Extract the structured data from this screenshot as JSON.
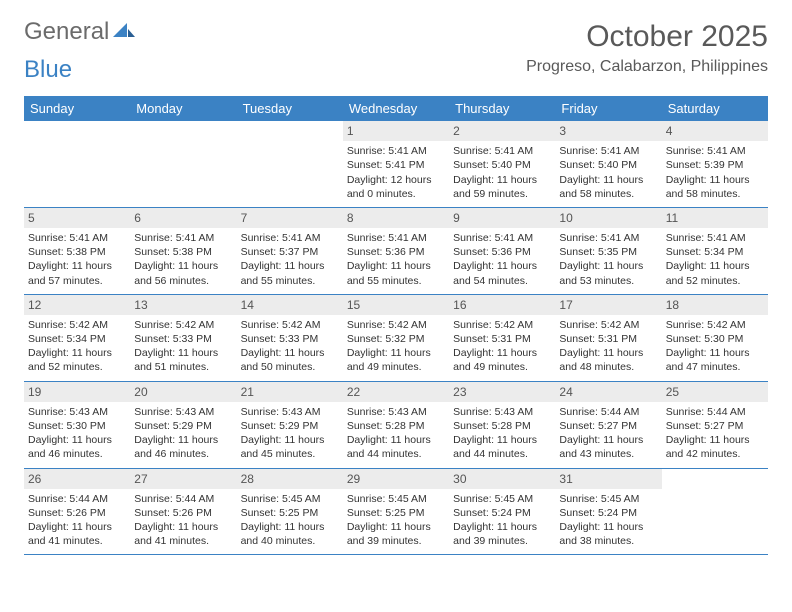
{
  "brand": {
    "part1": "General",
    "part2": "Blue"
  },
  "title": "October 2025",
  "location": "Progreso, Calabarzon, Philippines",
  "colors": {
    "header_bg": "#3b82c4",
    "header_text": "#ffffff",
    "daynum_bg": "#ececec",
    "text": "#333333",
    "title_color": "#595959",
    "border": "#3b82c4"
  },
  "day_names": [
    "Sunday",
    "Monday",
    "Tuesday",
    "Wednesday",
    "Thursday",
    "Friday",
    "Saturday"
  ],
  "weeks": [
    [
      null,
      null,
      null,
      {
        "d": "1",
        "sr": "Sunrise: 5:41 AM",
        "ss": "Sunset: 5:41 PM",
        "dl": "Daylight: 12 hours and 0 minutes."
      },
      {
        "d": "2",
        "sr": "Sunrise: 5:41 AM",
        "ss": "Sunset: 5:40 PM",
        "dl": "Daylight: 11 hours and 59 minutes."
      },
      {
        "d": "3",
        "sr": "Sunrise: 5:41 AM",
        "ss": "Sunset: 5:40 PM",
        "dl": "Daylight: 11 hours and 58 minutes."
      },
      {
        "d": "4",
        "sr": "Sunrise: 5:41 AM",
        "ss": "Sunset: 5:39 PM",
        "dl": "Daylight: 11 hours and 58 minutes."
      }
    ],
    [
      {
        "d": "5",
        "sr": "Sunrise: 5:41 AM",
        "ss": "Sunset: 5:38 PM",
        "dl": "Daylight: 11 hours and 57 minutes."
      },
      {
        "d": "6",
        "sr": "Sunrise: 5:41 AM",
        "ss": "Sunset: 5:38 PM",
        "dl": "Daylight: 11 hours and 56 minutes."
      },
      {
        "d": "7",
        "sr": "Sunrise: 5:41 AM",
        "ss": "Sunset: 5:37 PM",
        "dl": "Daylight: 11 hours and 55 minutes."
      },
      {
        "d": "8",
        "sr": "Sunrise: 5:41 AM",
        "ss": "Sunset: 5:36 PM",
        "dl": "Daylight: 11 hours and 55 minutes."
      },
      {
        "d": "9",
        "sr": "Sunrise: 5:41 AM",
        "ss": "Sunset: 5:36 PM",
        "dl": "Daylight: 11 hours and 54 minutes."
      },
      {
        "d": "10",
        "sr": "Sunrise: 5:41 AM",
        "ss": "Sunset: 5:35 PM",
        "dl": "Daylight: 11 hours and 53 minutes."
      },
      {
        "d": "11",
        "sr": "Sunrise: 5:41 AM",
        "ss": "Sunset: 5:34 PM",
        "dl": "Daylight: 11 hours and 52 minutes."
      }
    ],
    [
      {
        "d": "12",
        "sr": "Sunrise: 5:42 AM",
        "ss": "Sunset: 5:34 PM",
        "dl": "Daylight: 11 hours and 52 minutes."
      },
      {
        "d": "13",
        "sr": "Sunrise: 5:42 AM",
        "ss": "Sunset: 5:33 PM",
        "dl": "Daylight: 11 hours and 51 minutes."
      },
      {
        "d": "14",
        "sr": "Sunrise: 5:42 AM",
        "ss": "Sunset: 5:33 PM",
        "dl": "Daylight: 11 hours and 50 minutes."
      },
      {
        "d": "15",
        "sr": "Sunrise: 5:42 AM",
        "ss": "Sunset: 5:32 PM",
        "dl": "Daylight: 11 hours and 49 minutes."
      },
      {
        "d": "16",
        "sr": "Sunrise: 5:42 AM",
        "ss": "Sunset: 5:31 PM",
        "dl": "Daylight: 11 hours and 49 minutes."
      },
      {
        "d": "17",
        "sr": "Sunrise: 5:42 AM",
        "ss": "Sunset: 5:31 PM",
        "dl": "Daylight: 11 hours and 48 minutes."
      },
      {
        "d": "18",
        "sr": "Sunrise: 5:42 AM",
        "ss": "Sunset: 5:30 PM",
        "dl": "Daylight: 11 hours and 47 minutes."
      }
    ],
    [
      {
        "d": "19",
        "sr": "Sunrise: 5:43 AM",
        "ss": "Sunset: 5:30 PM",
        "dl": "Daylight: 11 hours and 46 minutes."
      },
      {
        "d": "20",
        "sr": "Sunrise: 5:43 AM",
        "ss": "Sunset: 5:29 PM",
        "dl": "Daylight: 11 hours and 46 minutes."
      },
      {
        "d": "21",
        "sr": "Sunrise: 5:43 AM",
        "ss": "Sunset: 5:29 PM",
        "dl": "Daylight: 11 hours and 45 minutes."
      },
      {
        "d": "22",
        "sr": "Sunrise: 5:43 AM",
        "ss": "Sunset: 5:28 PM",
        "dl": "Daylight: 11 hours and 44 minutes."
      },
      {
        "d": "23",
        "sr": "Sunrise: 5:43 AM",
        "ss": "Sunset: 5:28 PM",
        "dl": "Daylight: 11 hours and 44 minutes."
      },
      {
        "d": "24",
        "sr": "Sunrise: 5:44 AM",
        "ss": "Sunset: 5:27 PM",
        "dl": "Daylight: 11 hours and 43 minutes."
      },
      {
        "d": "25",
        "sr": "Sunrise: 5:44 AM",
        "ss": "Sunset: 5:27 PM",
        "dl": "Daylight: 11 hours and 42 minutes."
      }
    ],
    [
      {
        "d": "26",
        "sr": "Sunrise: 5:44 AM",
        "ss": "Sunset: 5:26 PM",
        "dl": "Daylight: 11 hours and 41 minutes."
      },
      {
        "d": "27",
        "sr": "Sunrise: 5:44 AM",
        "ss": "Sunset: 5:26 PM",
        "dl": "Daylight: 11 hours and 41 minutes."
      },
      {
        "d": "28",
        "sr": "Sunrise: 5:45 AM",
        "ss": "Sunset: 5:25 PM",
        "dl": "Daylight: 11 hours and 40 minutes."
      },
      {
        "d": "29",
        "sr": "Sunrise: 5:45 AM",
        "ss": "Sunset: 5:25 PM",
        "dl": "Daylight: 11 hours and 39 minutes."
      },
      {
        "d": "30",
        "sr": "Sunrise: 5:45 AM",
        "ss": "Sunset: 5:24 PM",
        "dl": "Daylight: 11 hours and 39 minutes."
      },
      {
        "d": "31",
        "sr": "Sunrise: 5:45 AM",
        "ss": "Sunset: 5:24 PM",
        "dl": "Daylight: 11 hours and 38 minutes."
      },
      null
    ]
  ]
}
